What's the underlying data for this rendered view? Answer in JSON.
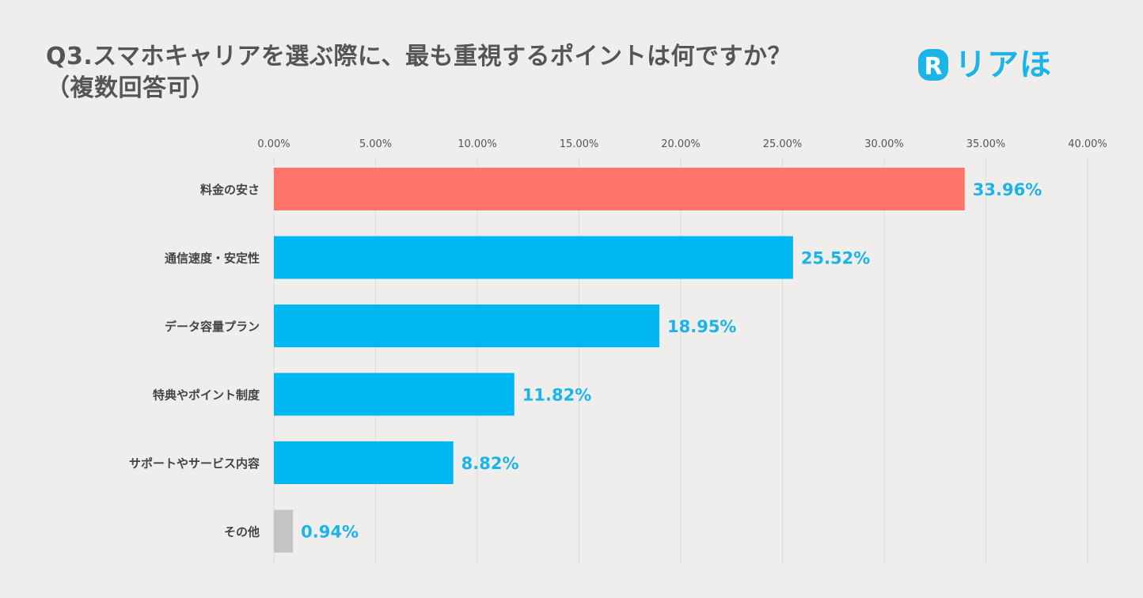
{
  "header": {
    "title_line1": "Q3.スマホキャリアを選ぶ際に、最も重視するポイントは何ですか？",
    "title_line2": "（複数回答可）"
  },
  "logo": {
    "mark_letter": "R",
    "text": "リアほ",
    "color": "#1ab4e8"
  },
  "chart_data": {
    "type": "bar",
    "orientation": "horizontal",
    "categories": [
      "料金の安さ",
      "通信速度・安定性",
      "データ容量プラン",
      "特典やポイント制度",
      "サポートやサービス内容",
      "その他"
    ],
    "values": [
      33.96,
      25.52,
      18.95,
      11.82,
      8.82,
      0.94
    ],
    "value_labels": [
      "33.96%",
      "25.52%",
      "18.95%",
      "11.82%",
      "8.82%",
      "0.94%"
    ],
    "bar_colors": [
      "#ff7368",
      "#00b7f2",
      "#00b7f2",
      "#00b7f2",
      "#00b7f2",
      "#c4c4c4"
    ],
    "xlim": [
      0,
      40
    ],
    "xticks": [
      0,
      5,
      10,
      15,
      20,
      25,
      30,
      35,
      40
    ],
    "xtick_labels": [
      "0.00%",
      "5.00%",
      "10.00%",
      "15.00%",
      "20.00%",
      "25.00%",
      "30.00%",
      "35.00%",
      "40.00%"
    ],
    "x_axis_position": "top",
    "grid": true,
    "label_color": "#1ab4e8"
  }
}
